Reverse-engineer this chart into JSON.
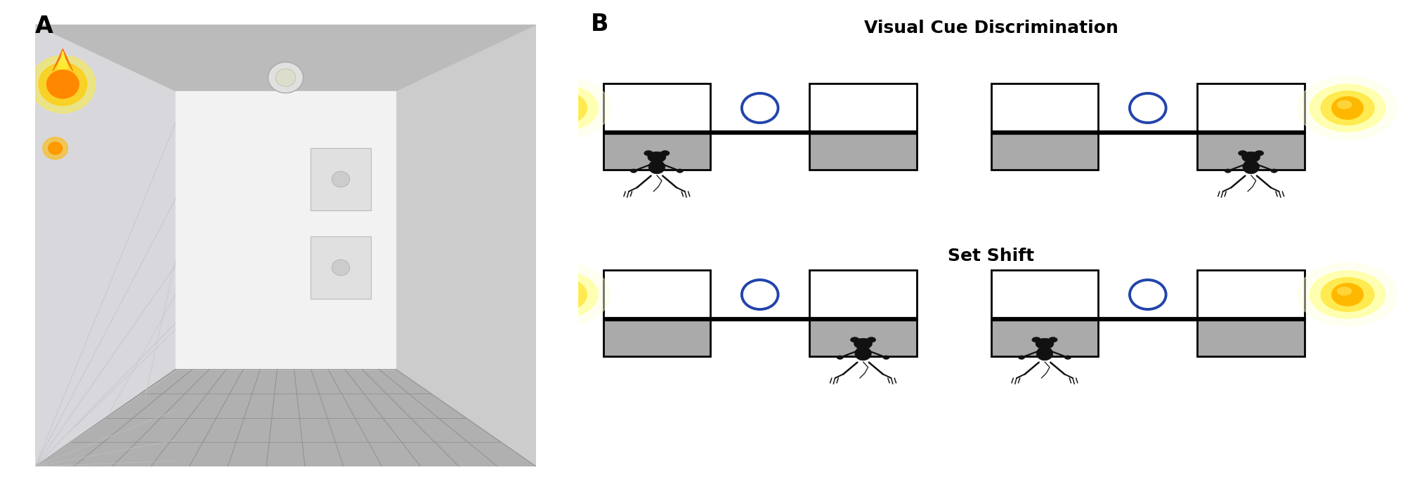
{
  "panel_A_label": "A",
  "panel_B_label": "B",
  "title_vcd": "Visual Cue Discrimination",
  "title_ss": "Set Shift",
  "title_fontsize": 18,
  "label_fontsize": 24,
  "bg_color": "#ffffff",
  "tray_color": "#aaaaaa",
  "sun_color": "#FFB800",
  "sun_glow1": "#FFFF99",
  "sun_glow2": "#FFE840",
  "circle_color": "#2244aa",
  "rat_color": "#111111"
}
